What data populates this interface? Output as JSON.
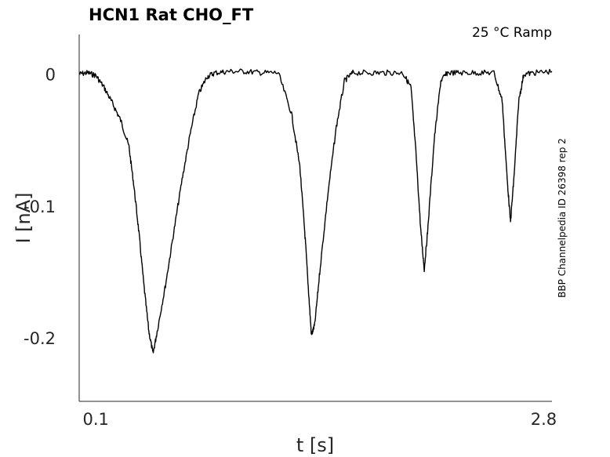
{
  "chart_data": {
    "type": "line",
    "title": "HCN1  Rat  CHO_FT",
    "subtitle": "25 °C  Ramp",
    "xlabel": "t [s]",
    "ylabel": "I [nA]",
    "side_note": "BBP Channelpedia ID 26398 rep 2",
    "xlim": [
      0.0,
      2.85
    ],
    "ylim": [
      -0.248,
      0.03
    ],
    "x_ticks": [
      0.1,
      2.8
    ],
    "x_tick_labels": [
      "0.1",
      "2.8"
    ],
    "y_ticks": [
      0,
      -0.1,
      -0.2
    ],
    "y_tick_labels": [
      "0",
      "-0.1",
      "-0.2"
    ],
    "grid": false,
    "series": [
      {
        "color": "#000000",
        "points": [
          [
            0.0,
            0.0
          ],
          [
            0.05,
            0.001
          ],
          [
            0.1,
            -0.001
          ],
          [
            0.15,
            -0.01
          ],
          [
            0.2,
            -0.022
          ],
          [
            0.25,
            -0.035
          ],
          [
            0.3,
            -0.055
          ],
          [
            0.33,
            -0.085
          ],
          [
            0.36,
            -0.12
          ],
          [
            0.39,
            -0.16
          ],
          [
            0.42,
            -0.195
          ],
          [
            0.445,
            -0.212
          ],
          [
            0.47,
            -0.195
          ],
          [
            0.52,
            -0.16
          ],
          [
            0.57,
            -0.12
          ],
          [
            0.62,
            -0.08
          ],
          [
            0.67,
            -0.045
          ],
          [
            0.72,
            -0.015
          ],
          [
            0.77,
            -0.002
          ],
          [
            0.82,
            0.001
          ],
          [
            0.9,
            0.002
          ],
          [
            1.0,
            0.002
          ],
          [
            1.1,
            0.001
          ],
          [
            1.2,
            0.001
          ],
          [
            1.28,
            -0.03
          ],
          [
            1.33,
            -0.07
          ],
          [
            1.36,
            -0.12
          ],
          [
            1.38,
            -0.16
          ],
          [
            1.4,
            -0.198
          ],
          [
            1.42,
            -0.19
          ],
          [
            1.45,
            -0.15
          ],
          [
            1.5,
            -0.09
          ],
          [
            1.55,
            -0.04
          ],
          [
            1.6,
            -0.005
          ],
          [
            1.65,
            0.001
          ],
          [
            1.75,
            0.001
          ],
          [
            1.85,
            0.001
          ],
          [
            1.95,
            0.001
          ],
          [
            2.0,
            -0.01
          ],
          [
            2.03,
            -0.06
          ],
          [
            2.06,
            -0.12
          ],
          [
            2.08,
            -0.148
          ],
          [
            2.1,
            -0.12
          ],
          [
            2.14,
            -0.05
          ],
          [
            2.18,
            -0.005
          ],
          [
            2.22,
            0.001
          ],
          [
            2.3,
            0.001
          ],
          [
            2.4,
            0.001
          ],
          [
            2.5,
            0.001
          ],
          [
            2.55,
            -0.02
          ],
          [
            2.58,
            -0.08
          ],
          [
            2.6,
            -0.112
          ],
          [
            2.62,
            -0.08
          ],
          [
            2.65,
            -0.02
          ],
          [
            2.68,
            0.0
          ],
          [
            2.75,
            0.001
          ],
          [
            2.85,
            0.002
          ]
        ]
      }
    ]
  }
}
